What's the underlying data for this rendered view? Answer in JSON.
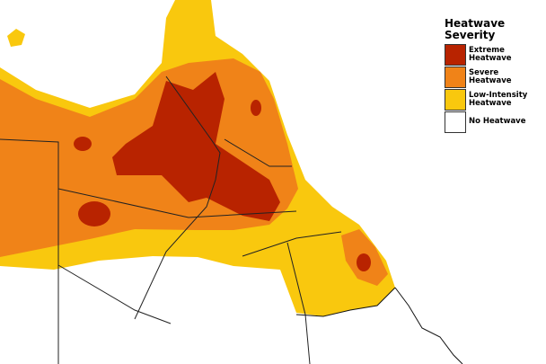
{
  "legend": {
    "title": "Heatwave Severity",
    "items": [
      {
        "label": "Extreme Heatwave",
        "color": "#b82300"
      },
      {
        "label": "Severe Heatwave",
        "color": "#f08318"
      },
      {
        "label": "Low-Intensity Heatwave",
        "color": "#f9c80e"
      },
      {
        "label": "No Heatwave",
        "color": "#ffffff"
      }
    ]
  }
}
